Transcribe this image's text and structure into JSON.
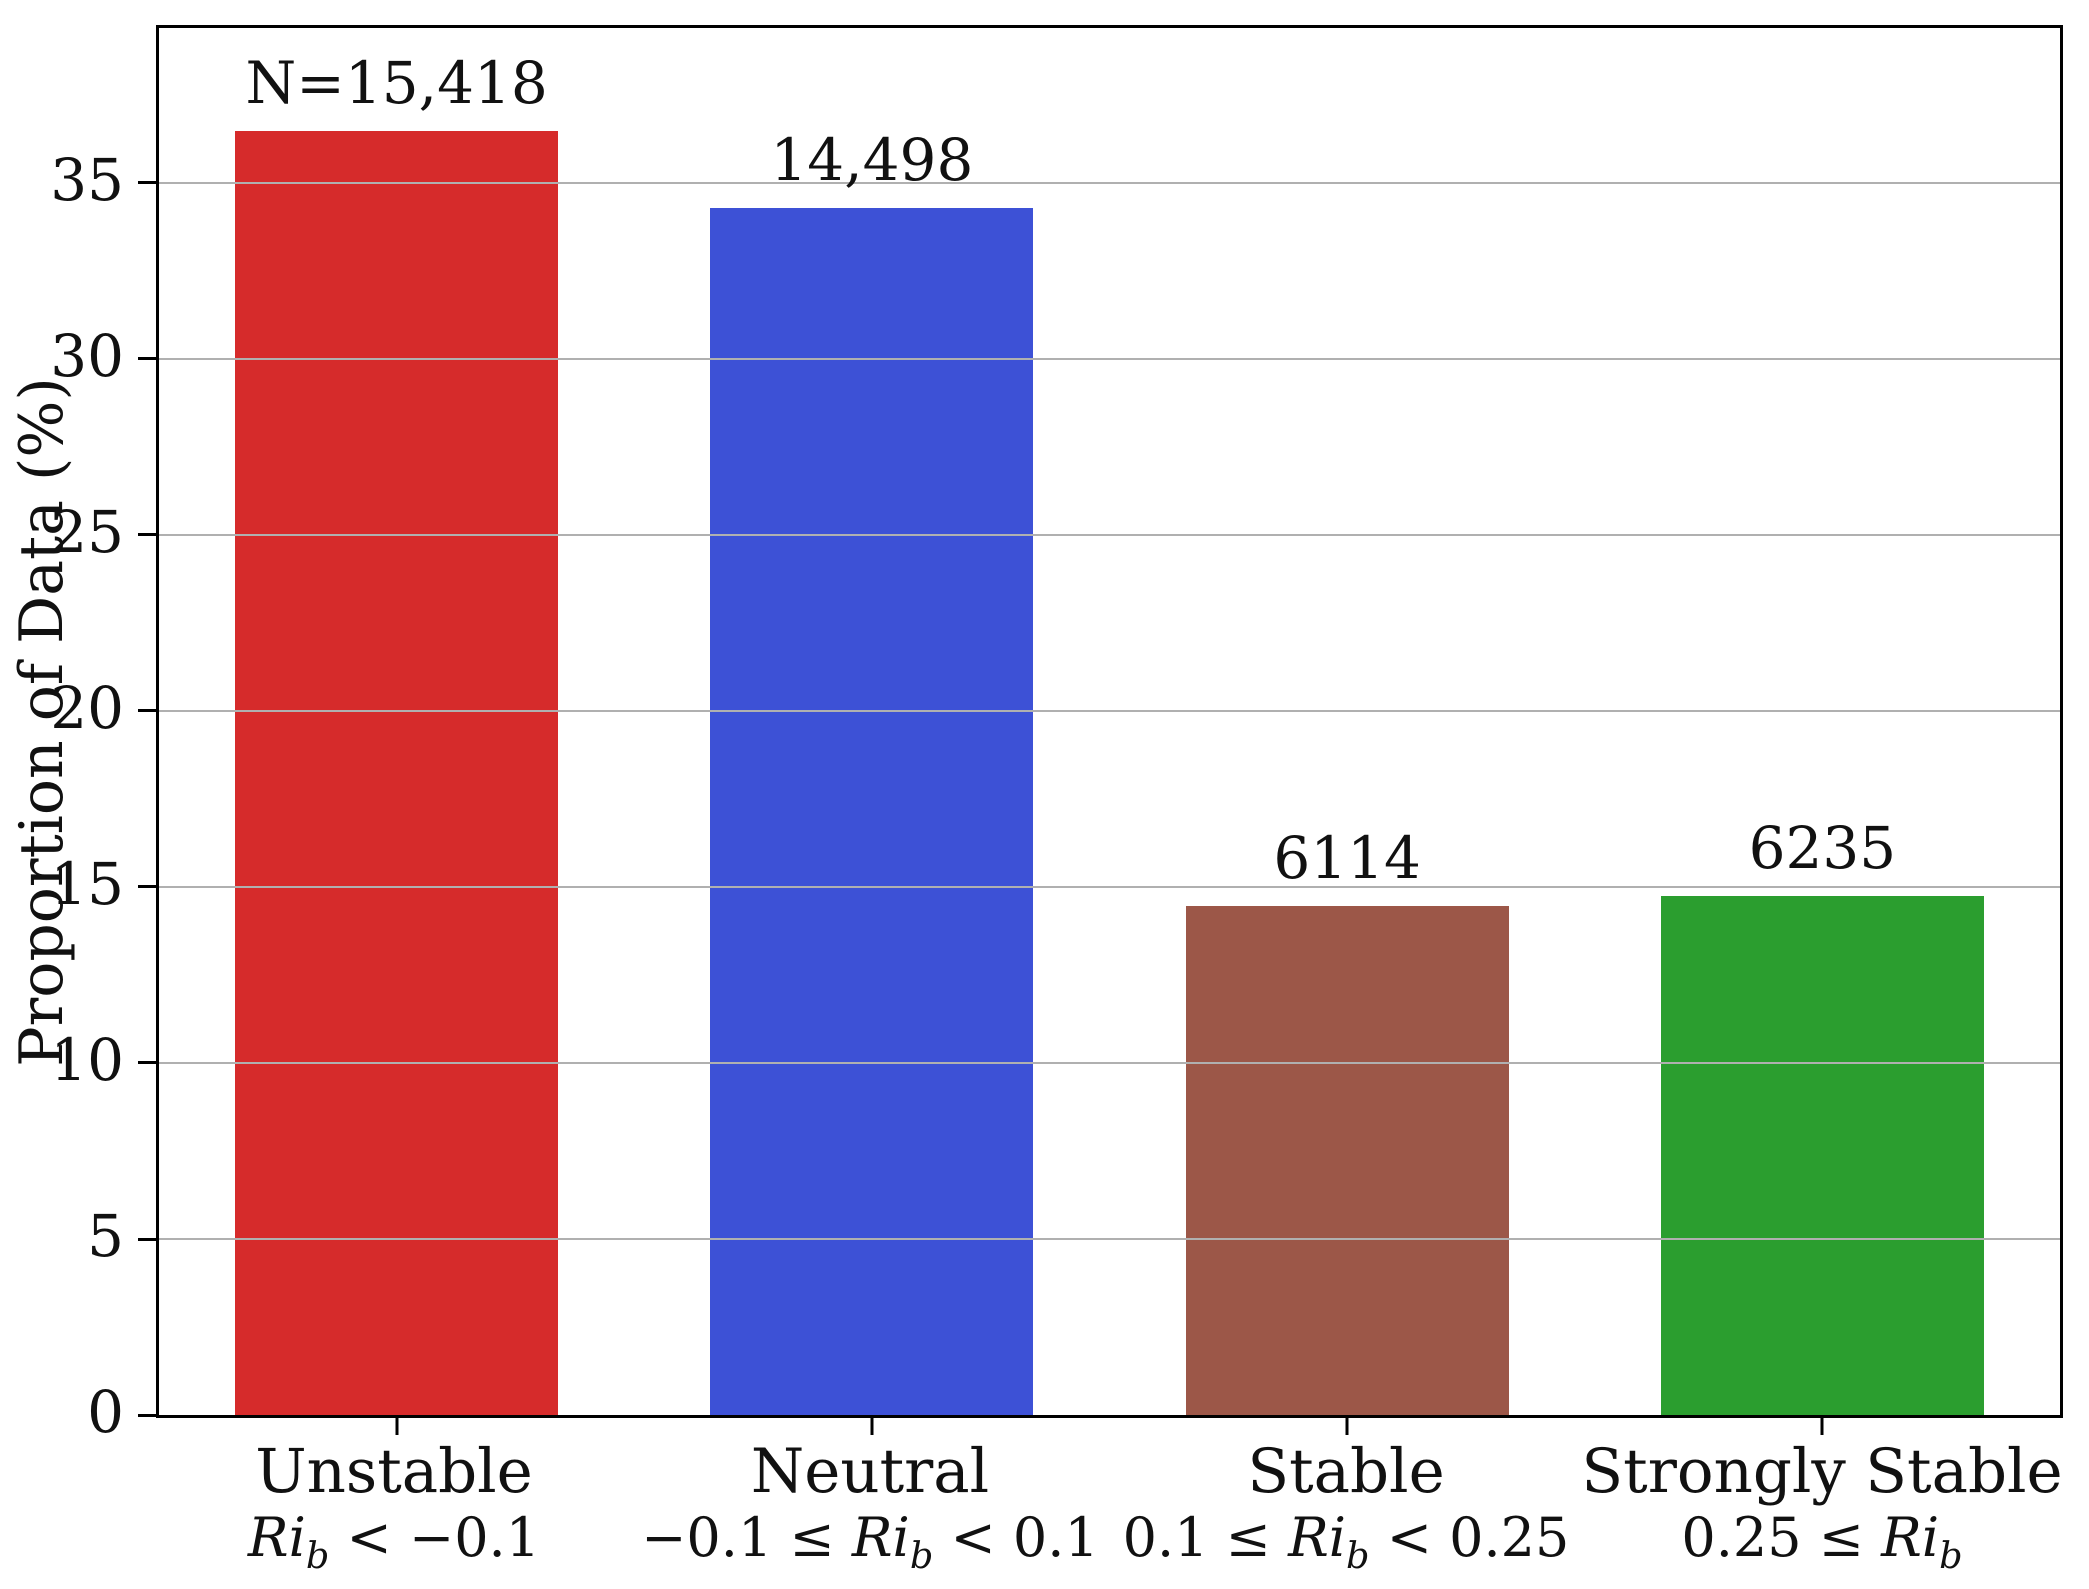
{
  "chart_data": {
    "type": "bar",
    "title": "",
    "xlabel": "",
    "ylabel": "Proportion of Data (%)",
    "ylim": [
      0,
      39.4
    ],
    "yticks": [
      0,
      5,
      10,
      15,
      20,
      25,
      30,
      35
    ],
    "ytick_labels": [
      "0",
      "5",
      "10",
      "15",
      "20",
      "25",
      "30",
      "35"
    ],
    "grid": "horizontal gridlines drawn over bars",
    "legend": "none",
    "categories": [
      "Unstable",
      "Neutral",
      "Stable",
      "Strongly Stable"
    ],
    "values": [
      36.48,
      34.3,
      14.47,
      14.75
    ],
    "counts": [
      15418,
      14498,
      6114,
      6235
    ],
    "count_labels": [
      "N=15,418",
      "14,498",
      "6114",
      "6235"
    ],
    "colors": [
      "#d62b2b",
      "#3d51d6",
      "#9c5748",
      "#2b9e2f"
    ],
    "grid_color": "#b0b0b0",
    "cond_parts": [
      {
        "pre": "",
        "var": "Ri",
        "sub": "b",
        "post": " < −0.1"
      },
      {
        "pre": "−0.1 ≤ ",
        "var": "Ri",
        "sub": "b",
        "post": " < 0.1"
      },
      {
        "pre": "0.1 ≤ ",
        "var": "Ri",
        "sub": "b",
        "post": " < 0.25"
      },
      {
        "pre": "0.25 ≤ ",
        "var": "Ri",
        "sub": "b",
        "post": ""
      }
    ]
  }
}
